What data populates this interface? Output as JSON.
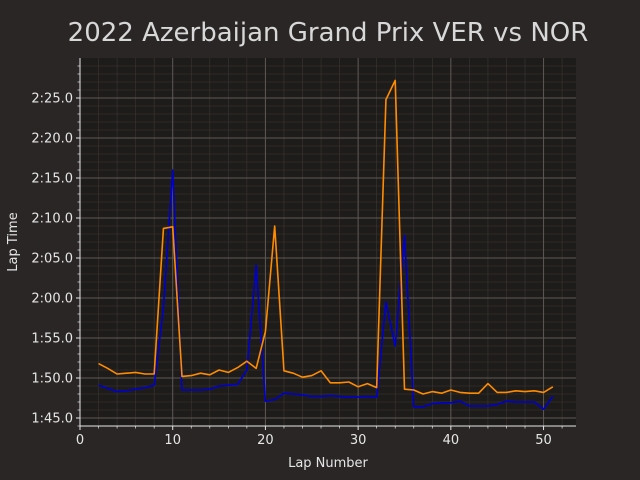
{
  "chart_data": {
    "type": "line",
    "title": "2022 Azerbaijan Grand Prix VER vs NOR",
    "xlabel": "Lap Number",
    "ylabel": "Lap Time",
    "xlim": [
      0,
      53.5
    ],
    "ylim": [
      104.0,
      150.0
    ],
    "x_ticks": [
      0,
      10,
      20,
      30,
      40,
      50
    ],
    "y_ticks": [
      {
        "value": 105,
        "label": "1:45.0"
      },
      {
        "value": 110,
        "label": "1:50.0"
      },
      {
        "value": 115,
        "label": "1:55.0"
      },
      {
        "value": 120,
        "label": "2:00.0"
      },
      {
        "value": 125,
        "label": "2:05.0"
      },
      {
        "value": 130,
        "label": "2:10.0"
      },
      {
        "value": 135,
        "label": "2:15.0"
      },
      {
        "value": 140,
        "label": "2:20.0"
      },
      {
        "value": 145,
        "label": "2:25.0"
      }
    ],
    "grid": true,
    "units_note": "y values in seconds",
    "series": [
      {
        "color": "#0000cc",
        "x": [
          2,
          3,
          4,
          5,
          6,
          7,
          8,
          9,
          10,
          11,
          12,
          13,
          14,
          15,
          16,
          17,
          18,
          19,
          20,
          21,
          22,
          23,
          24,
          25,
          26,
          27,
          28,
          29,
          30,
          31,
          32,
          33,
          34,
          35,
          36,
          37,
          38,
          39,
          40,
          41,
          42,
          43,
          44,
          45,
          46,
          47,
          48,
          49,
          50,
          51
        ],
        "y": [
          109.1,
          108.7,
          108.3,
          108.4,
          108.6,
          108.8,
          109.1,
          118.8,
          136.0,
          108.5,
          108.5,
          108.5,
          108.6,
          109.0,
          109.1,
          109.2,
          111.0,
          124.1,
          107.1,
          107.3,
          108.1,
          108.0,
          107.9,
          107.7,
          107.7,
          107.8,
          107.7,
          107.6,
          107.6,
          107.7,
          107.6,
          119.5,
          114.0,
          127.8,
          106.4,
          106.4,
          106.8,
          106.9,
          106.9,
          107.1,
          106.5,
          106.5,
          106.5,
          106.7,
          107.1,
          107.0,
          107.0,
          107.0,
          106.1,
          107.7
        ]
      },
      {
        "color": "#ff8c00",
        "x": [
          2,
          3,
          4,
          5,
          6,
          7,
          8,
          9,
          10,
          11,
          12,
          13,
          14,
          15,
          16,
          17,
          18,
          19,
          20,
          21,
          22,
          23,
          24,
          25,
          26,
          27,
          28,
          29,
          30,
          31,
          32,
          33,
          34,
          35,
          36,
          37,
          38,
          39,
          40,
          41,
          42,
          43,
          44,
          45,
          46,
          47,
          48,
          49,
          50,
          51
        ],
        "y": [
          111.8,
          111.2,
          110.5,
          110.6,
          110.7,
          110.5,
          110.5,
          128.7,
          128.9,
          110.2,
          110.3,
          110.6,
          110.4,
          111.0,
          110.7,
          111.3,
          112.1,
          111.2,
          115.8,
          129.0,
          110.9,
          110.6,
          110.1,
          110.3,
          110.9,
          109.4,
          109.4,
          109.5,
          108.9,
          109.3,
          108.8,
          144.8,
          147.2,
          108.6,
          108.5,
          108.0,
          108.3,
          108.1,
          108.5,
          108.2,
          108.1,
          108.1,
          109.3,
          108.2,
          108.2,
          108.4,
          108.3,
          108.4,
          108.2,
          108.9
        ]
      }
    ]
  }
}
